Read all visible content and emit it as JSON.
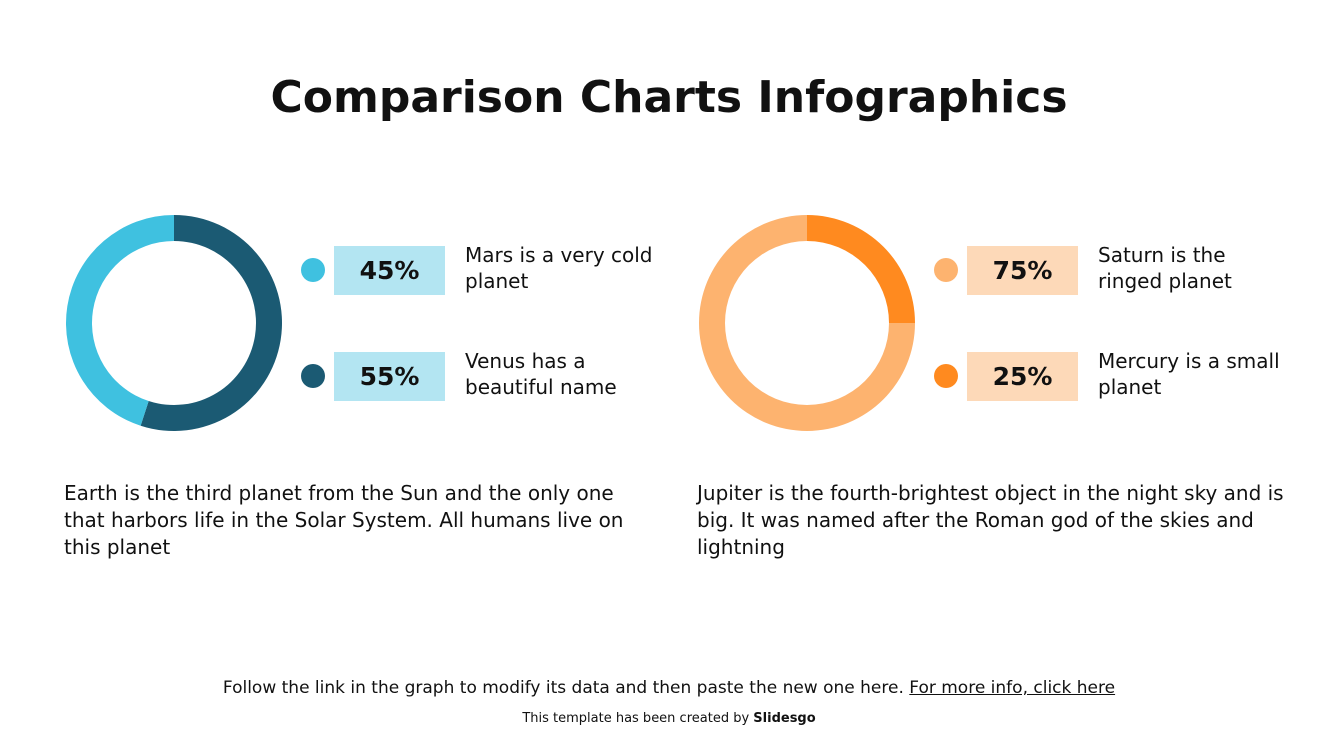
{
  "title": "Comparison Charts Infographics",
  "chart_data": [
    {
      "type": "donut",
      "categories": [
        "Mars is a very cold planet",
        "Venus has a beautiful name"
      ],
      "values": [
        45,
        55
      ],
      "value_labels": [
        "45%",
        "55%"
      ],
      "colors": [
        "#3fc1e0",
        "#1b5a73"
      ],
      "label_box_color": "#b3e5f2",
      "description": "Earth is the third planet from the Sun and the only one that harbors life in the Solar System. All humans live on this planet"
    },
    {
      "type": "donut",
      "categories": [
        "Saturn is the ringed planet",
        "Mercury is a small planet"
      ],
      "values": [
        75,
        25
      ],
      "value_labels": [
        "75%",
        "25%"
      ],
      "colors": [
        "#fdb36f",
        "#ff8a1f"
      ],
      "label_box_color": "#fdd9b8",
      "description": "Jupiter is the fourth-brightest object in the night sky and is big. It was named after the Roman god of the skies and lightning"
    }
  ],
  "footer": {
    "note": "Follow the link in the graph to modify its data and then paste the new one here.",
    "link": "For more info, click here",
    "credit": "This template has been created by",
    "brand": "Slidesgo"
  }
}
